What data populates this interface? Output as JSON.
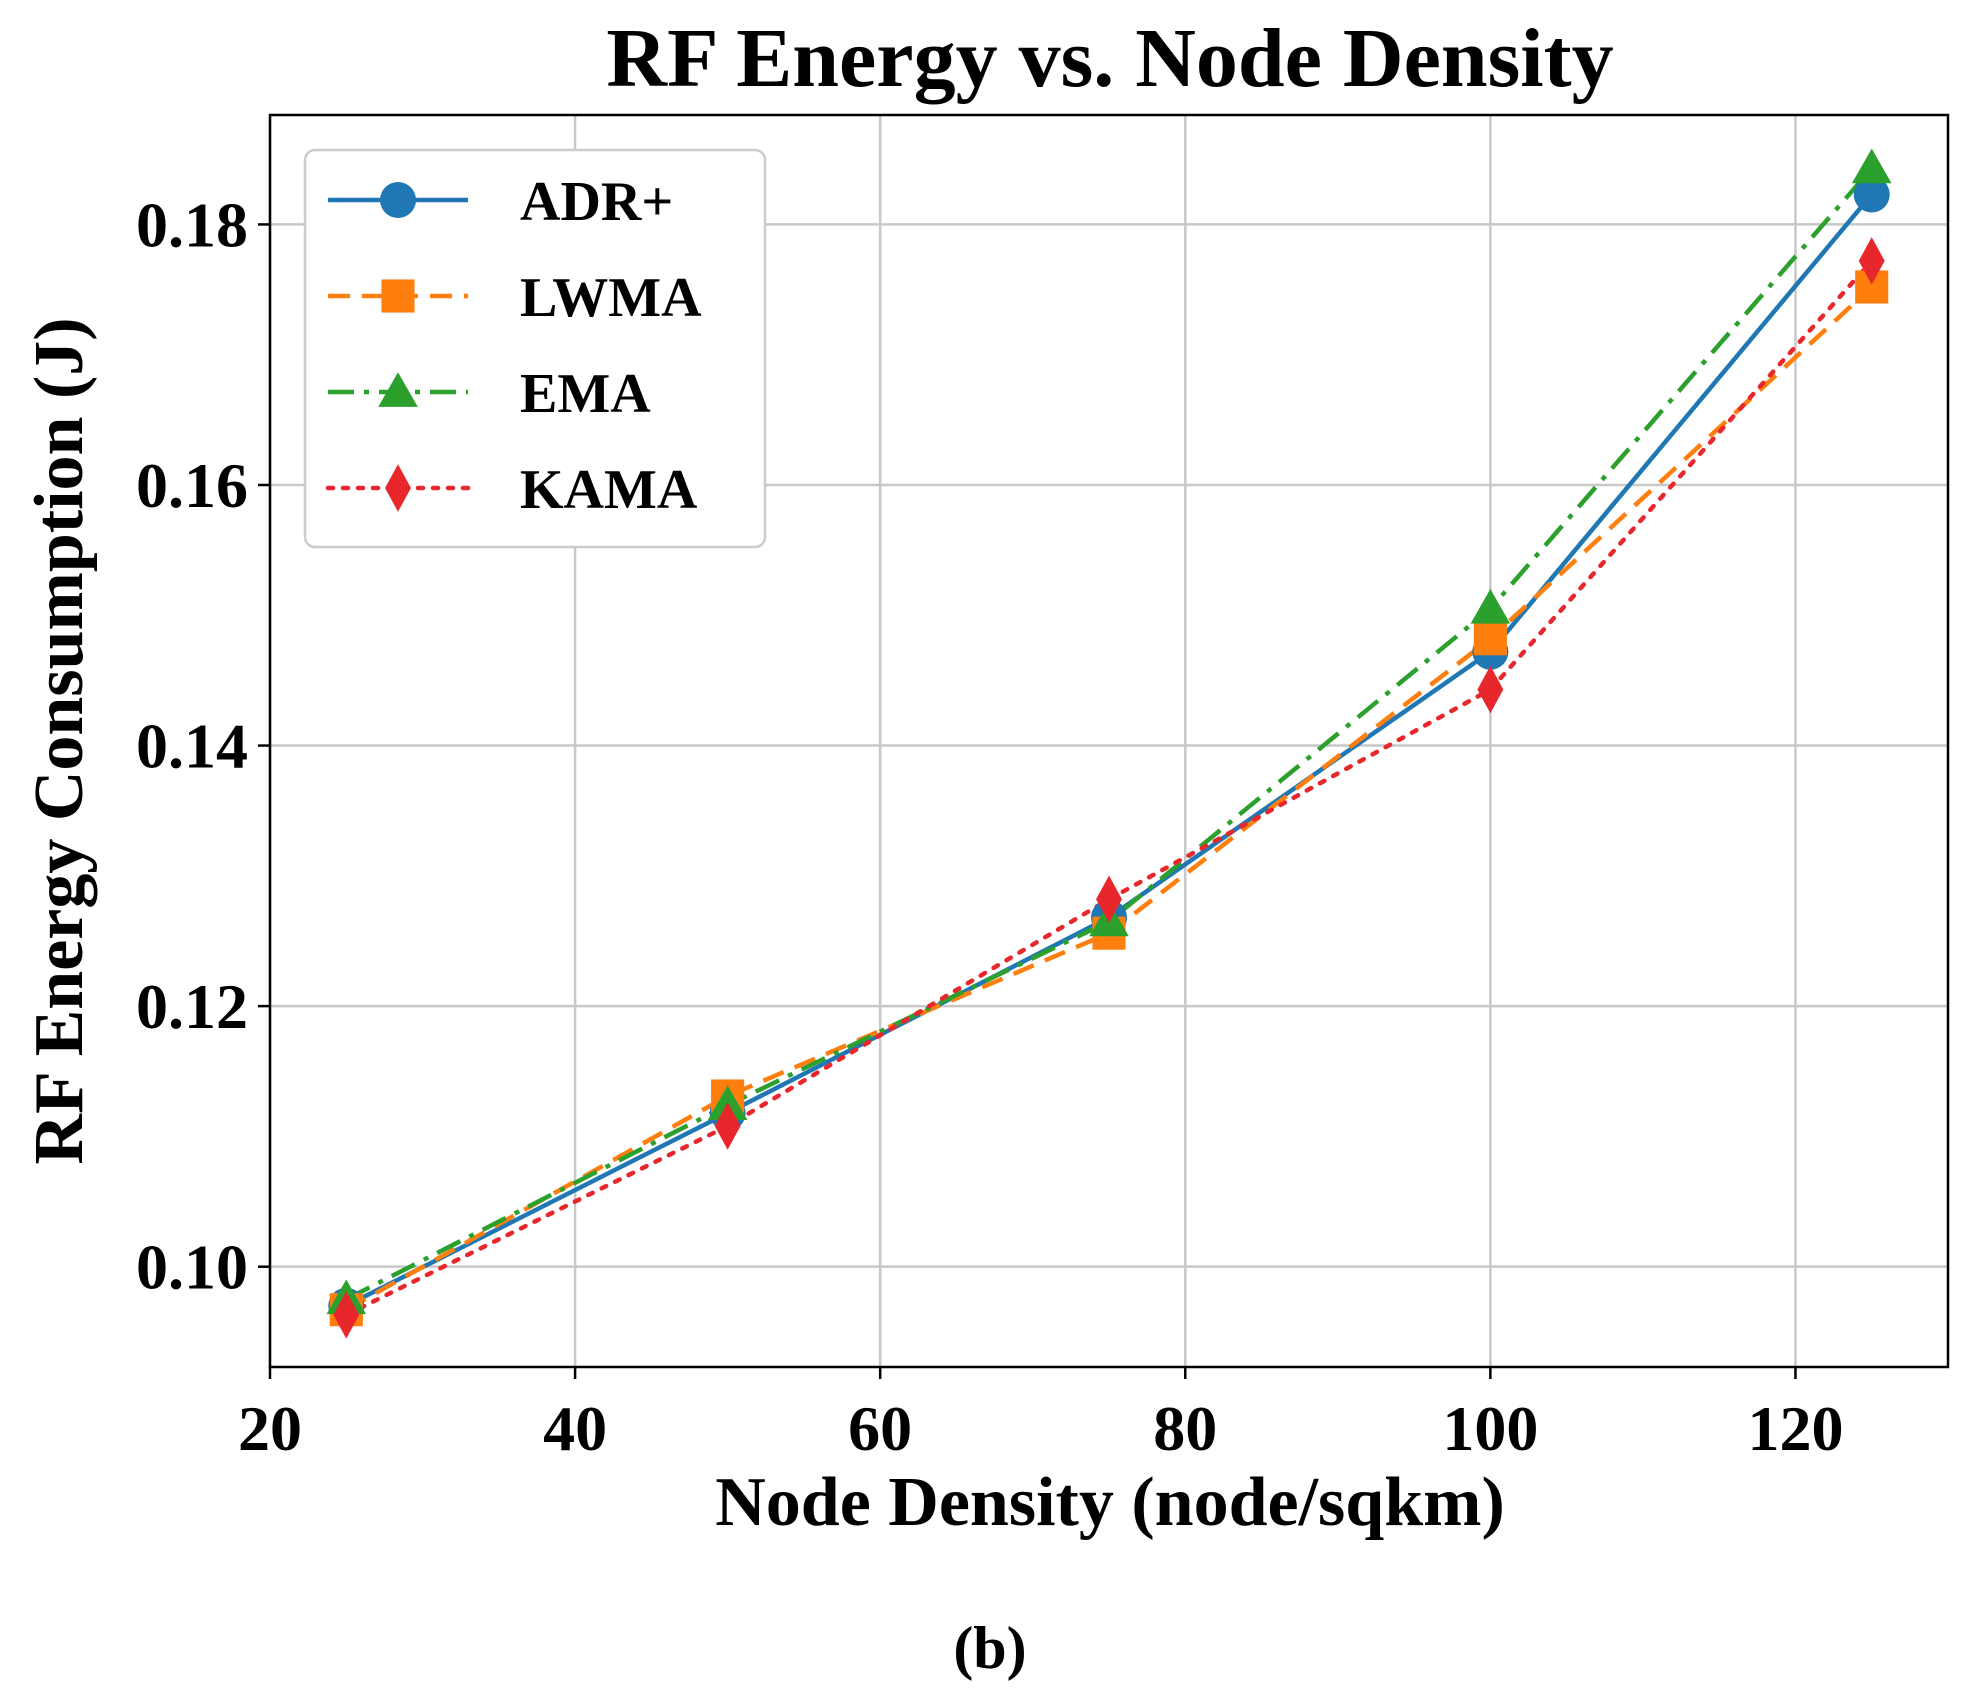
{
  "chart_data": {
    "type": "line",
    "title": "RF Energy vs. Node Density",
    "xlabel": "Node Density (node/sqkm)",
    "ylabel": "RF Energy Consumption (J)",
    "xlim": [
      20,
      130
    ],
    "ylim": [
      0.0923,
      0.1884
    ],
    "xticks": [
      20,
      40,
      60,
      80,
      100,
      120
    ],
    "yticks": [
      0.1,
      0.12,
      0.14,
      0.16,
      0.18
    ],
    "xtick_labels": [
      "20",
      "40",
      "60",
      "80",
      "100",
      "120"
    ],
    "ytick_labels": [
      "0.10",
      "0.12",
      "0.14",
      "0.16",
      "0.18"
    ],
    "grid": true,
    "legend_position": "top-left",
    "x": [
      25,
      50,
      75,
      100,
      125
    ],
    "series": [
      {
        "name": "ADR+",
        "values": [
          0.097,
          0.1118,
          0.1268,
          0.1472,
          0.1823
        ],
        "color": "#1f77b4",
        "marker": "circle",
        "line_style": "solid"
      },
      {
        "name": "LWMA",
        "values": [
          0.0967,
          0.1131,
          0.1256,
          0.1482,
          0.1752
        ],
        "color": "#ff7f0e",
        "marker": "square",
        "line_style": "dashed"
      },
      {
        "name": "EMA",
        "values": [
          0.0975,
          0.1124,
          0.1265,
          0.1505,
          0.1843
        ],
        "color": "#2ca02c",
        "marker": "triangle",
        "line_style": "dashdot"
      },
      {
        "name": "KAMA",
        "values": [
          0.0963,
          0.1108,
          0.1282,
          0.1443,
          0.1772
        ],
        "color": "#e8272c",
        "marker": "diamond",
        "line_style": "dotted"
      }
    ],
    "caption": "(b)"
  }
}
